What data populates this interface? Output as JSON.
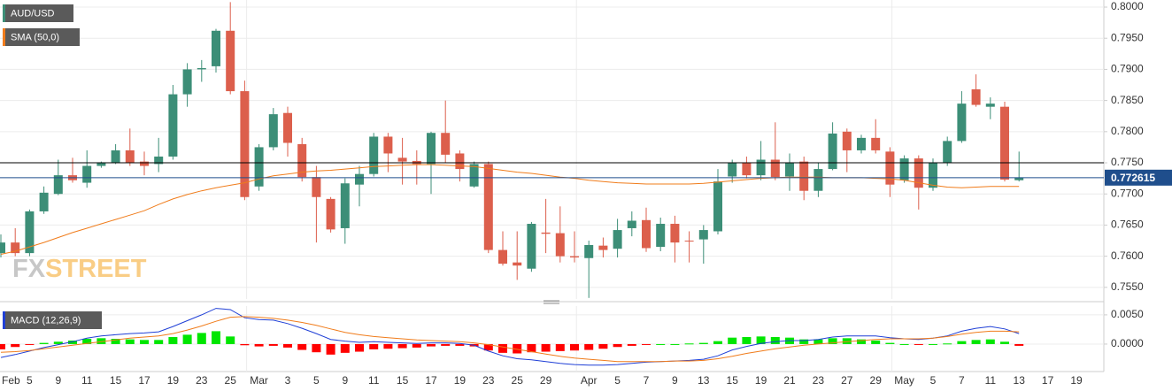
{
  "chart_data": [
    {
      "type": "candlestick",
      "name": "AUD/USD",
      "categories": [
        "Feb",
        null,
        "5",
        null,
        "9",
        null,
        "11",
        null,
        "15",
        null,
        "17",
        null,
        "19",
        null,
        "23",
        null,
        "25",
        null,
        "Mar",
        null,
        "3",
        null,
        "5",
        null,
        "9",
        null,
        "11",
        null,
        "15",
        null,
        "17",
        null,
        "19",
        null,
        "23",
        null,
        "25",
        null,
        "29",
        null,
        null,
        "Apr",
        null,
        "5",
        null,
        "7",
        null,
        "9",
        null,
        "13",
        null,
        "15",
        null,
        "19",
        null,
        "21",
        null,
        "23",
        null,
        "27",
        null,
        "29",
        null,
        "May",
        null,
        "5",
        null,
        "7",
        null,
        "11",
        null,
        "13",
        null,
        "17",
        null,
        "19"
      ],
      "open": [
        0.7605,
        0.7622,
        0.7605,
        0.7672,
        0.77,
        0.773,
        0.7718,
        0.7745,
        0.775,
        0.777,
        0.7752,
        0.7748,
        0.776,
        0.786,
        0.79,
        0.7905,
        0.7962,
        0.7865,
        0.7712,
        0.7775,
        0.783,
        0.778,
        0.7727,
        0.7692,
        0.7645,
        0.7715,
        0.7732,
        0.7792,
        0.7758,
        0.7753,
        0.7748,
        0.7798,
        0.7765,
        0.7712,
        0.7748,
        0.761,
        0.759,
        0.758,
        0.7638,
        0.7637,
        0.76,
        0.7597,
        0.7617,
        0.7612,
        0.7645,
        0.7658,
        0.7615,
        0.7652,
        0.7625,
        0.7627,
        0.764,
        0.7728,
        0.775,
        0.773,
        0.7755,
        0.7728,
        0.7752,
        0.7705,
        0.774,
        0.78,
        0.777,
        0.779,
        0.7768,
        0.7722,
        0.7757,
        0.771,
        0.775,
        0.7785,
        0.7868,
        0.784,
        0.784,
        0.7722,
        null,
        null,
        null,
        null
      ],
      "high": [
        0.7635,
        0.7645,
        0.7675,
        0.7712,
        0.7755,
        0.7758,
        0.777,
        0.7752,
        0.778,
        0.7805,
        0.7768,
        0.779,
        0.7875,
        0.791,
        0.7915,
        0.7965,
        0.8008,
        0.7882,
        0.778,
        0.7838,
        0.784,
        0.779,
        0.7745,
        0.7695,
        0.7725,
        0.7745,
        0.7798,
        0.7798,
        0.779,
        0.777,
        0.78,
        0.785,
        0.777,
        0.7752,
        0.7752,
        0.764,
        0.764,
        0.7655,
        0.7692,
        0.768,
        0.764,
        0.7625,
        0.763,
        0.766,
        0.7672,
        0.7678,
        0.7662,
        0.7665,
        0.764,
        0.765,
        0.774,
        0.7755,
        0.776,
        0.7785,
        0.7815,
        0.7765,
        0.776,
        0.775,
        0.7815,
        0.7805,
        0.7795,
        0.782,
        0.7775,
        0.7762,
        0.7762,
        0.7757,
        0.7792,
        0.7865,
        0.7892,
        0.7855,
        0.7848,
        0.7768,
        null,
        null,
        null,
        null
      ],
      "low": [
        0.7598,
        0.76,
        0.76,
        0.7668,
        0.7698,
        0.7718,
        0.771,
        0.7742,
        0.7748,
        0.7745,
        0.773,
        0.7735,
        0.7755,
        0.784,
        0.788,
        0.7895,
        0.786,
        0.769,
        0.7705,
        0.777,
        0.776,
        0.772,
        0.7622,
        0.7638,
        0.762,
        0.768,
        0.7728,
        0.7735,
        0.7715,
        0.7715,
        0.77,
        0.775,
        0.772,
        0.771,
        0.7605,
        0.7585,
        0.7562,
        0.7575,
        0.7605,
        0.759,
        0.759,
        0.7533,
        0.7598,
        0.7598,
        0.7632,
        0.7607,
        0.7608,
        0.759,
        0.759,
        0.7588,
        0.7635,
        0.7718,
        0.7725,
        0.7722,
        0.7722,
        0.7705,
        0.769,
        0.7695,
        0.7738,
        0.7735,
        0.7765,
        0.7765,
        0.7695,
        0.7718,
        0.7675,
        0.7705,
        0.7745,
        0.7782,
        0.784,
        0.782,
        0.772,
        0.772,
        null,
        null,
        null,
        null
      ],
      "close": [
        0.7622,
        0.7605,
        0.7672,
        0.7702,
        0.773,
        0.7722,
        0.7745,
        0.775,
        0.777,
        0.775,
        0.7745,
        0.776,
        0.786,
        0.79,
        0.7902,
        0.7962,
        0.7865,
        0.7695,
        0.7775,
        0.7828,
        0.7782,
        0.7727,
        0.7695,
        0.7643,
        0.7717,
        0.7732,
        0.7792,
        0.7765,
        0.7752,
        0.7748,
        0.7798,
        0.7763,
        0.774,
        0.7748,
        0.761,
        0.7588,
        0.7585,
        0.7652,
        0.7636,
        0.76,
        0.7598,
        0.7618,
        0.761,
        0.7642,
        0.7657,
        0.7613,
        0.7652,
        0.7622,
        0.7624,
        0.7642,
        0.772,
        0.775,
        0.773,
        0.7755,
        0.7727,
        0.775,
        0.7705,
        0.774,
        0.7797,
        0.777,
        0.779,
        0.777,
        0.7715,
        0.7757,
        0.771,
        0.775,
        0.7785,
        0.7845,
        0.7843,
        0.7845,
        0.7723,
        0.7726,
        null,
        null,
        null,
        null
      ],
      "up_color": "#3c8e77",
      "down_color": "#dc5f4c",
      "series": [
        {
          "name": "SMA (50,0)",
          "color": "#f07c1b",
          "values": [
            0.7603,
            0.7608,
            0.7615,
            0.7622,
            0.763,
            0.7638,
            0.7645,
            0.7652,
            0.7659,
            0.7666,
            0.7673,
            0.7683,
            0.7692,
            0.7699,
            0.7705,
            0.771,
            0.7714,
            0.7718,
            0.7724,
            0.7729,
            0.7732,
            0.7735,
            0.7737,
            0.7738,
            0.774,
            0.7742,
            0.7744,
            0.7745,
            0.7746,
            0.7747,
            0.7747,
            0.7746,
            0.7745,
            0.7744,
            0.7741,
            0.7738,
            0.7735,
            0.7733,
            0.773,
            0.7727,
            0.7725,
            0.7722,
            0.772,
            0.7718,
            0.7717,
            0.7716,
            0.7716,
            0.7716,
            0.7716,
            0.7717,
            0.7719,
            0.7721,
            0.7723,
            0.7725,
            0.7726,
            0.7727,
            0.7727,
            0.7727,
            0.7726,
            0.7726,
            0.7726,
            0.7725,
            0.7724,
            0.7722,
            0.7718,
            0.7714,
            0.7711,
            0.771,
            0.7711,
            0.7712,
            0.7712,
            0.7712,
            null,
            null,
            null,
            null
          ]
        }
      ],
      "ylim": [
        0.75313,
        0.80114
      ],
      "yticks": [
        {
          "value": 0.755,
          "label": "0.7550"
        },
        {
          "value": 0.76,
          "label": "0.7600"
        },
        {
          "value": 0.765,
          "label": "0.7650"
        },
        {
          "value": 0.77,
          "label": "0.7700"
        },
        {
          "value": 0.775,
          "label": "0.7750"
        },
        {
          "value": 0.78,
          "label": "0.7800"
        },
        {
          "value": 0.785,
          "label": "0.7850"
        },
        {
          "value": 0.79,
          "label": "0.7900"
        },
        {
          "value": 0.795,
          "label": "0.7950"
        },
        {
          "value": 0.8,
          "label": "0.8000"
        }
      ],
      "grid": true,
      "hline": 0.775,
      "last": 0.772615,
      "last_color": "#1f4e8c",
      "watermark": [
        "FX",
        "STREET"
      ]
    },
    {
      "type": "macd",
      "title": "MACD (12,26,9)",
      "series": [
        {
          "color": "#1f3fd6",
          "values": [
            -0.0023,
            -0.0018,
            -0.0012,
            -0.0006,
            -0.0001,
            0.0004,
            0.001,
            0.0014,
            0.0016,
            0.0018,
            0.0019,
            0.0021,
            0.003,
            0.004,
            0.005,
            0.0061,
            0.0059,
            0.0045,
            0.0042,
            0.0041,
            0.0035,
            0.0027,
            0.0018,
            0.0008,
            0.0005,
            0.0003,
            0.0004,
            0.0003,
            0.0002,
            0.0001,
            0.0002,
            0.0002,
            0.0001,
            -0.0002,
            -0.0012,
            -0.002,
            -0.0025,
            -0.0027,
            -0.003,
            -0.0033,
            -0.0035,
            -0.0036,
            -0.0036,
            -0.0035,
            -0.0033,
            -0.0031,
            -0.003,
            -0.0029,
            -0.0028,
            -0.0026,
            -0.002,
            -0.001,
            -0.0004,
            0.0001,
            0.0004,
            0.0006,
            0.0006,
            0.0008,
            0.0012,
            0.0014,
            0.0014,
            0.0014,
            0.0011,
            0.0009,
            0.0008,
            0.001,
            0.0014,
            0.0022,
            0.0027,
            0.003,
            0.0026,
            0.0018,
            null,
            null,
            null,
            null
          ]
        },
        {
          "color": "#f07c1b",
          "values": [
            -0.0014,
            -0.0013,
            -0.0011,
            -0.0008,
            -0.0005,
            -0.0002,
            0.0001,
            0.0004,
            0.0007,
            0.001,
            0.0012,
            0.0014,
            0.0018,
            0.0024,
            0.0031,
            0.0039,
            0.0046,
            0.0047,
            0.0046,
            0.0044,
            0.0041,
            0.0037,
            0.0032,
            0.0026,
            0.002,
            0.0016,
            0.0013,
            0.0011,
            0.0009,
            0.0007,
            0.0006,
            0.0005,
            0.0004,
            0.0002,
            -0.0001,
            -0.0005,
            -0.0009,
            -0.0013,
            -0.0017,
            -0.0021,
            -0.0024,
            -0.0026,
            -0.0028,
            -0.003,
            -0.003,
            -0.003,
            -0.003,
            -0.0029,
            -0.0029,
            -0.0028,
            -0.0025,
            -0.0021,
            -0.0016,
            -0.0012,
            -0.0008,
            -0.0005,
            -0.0002,
            0,
            0.0002,
            0.0004,
            0.0006,
            0.0008,
            0.0009,
            0.0009,
            0.0009,
            0.001,
            0.0013,
            0.0017,
            0.002,
            0.0022,
            0.0022,
            0.0021,
            null,
            null,
            null,
            null
          ]
        }
      ],
      "histogram": {
        "up_color": "#00e600",
        "down_color": "#ff0000",
        "values": [
          -0.0009,
          -0.0005,
          -0.0001,
          0.0002,
          0.0004,
          0.0006,
          0.0009,
          0.001,
          0.0009,
          0.0008,
          0.0007,
          0.0007,
          0.0012,
          0.0016,
          0.0019,
          0.0022,
          0.0013,
          -0.0002,
          -0.0004,
          -0.0003,
          -0.0006,
          -0.001,
          -0.0014,
          -0.0018,
          -0.0015,
          -0.0013,
          -0.0009,
          -0.0008,
          -0.0007,
          -0.0006,
          -0.0004,
          -0.0003,
          -0.0003,
          -0.0004,
          -0.0011,
          -0.0015,
          -0.0016,
          -0.0014,
          -0.0013,
          -0.0012,
          -0.0011,
          -0.001,
          -0.0008,
          -0.0005,
          -0.0003,
          -0.0001,
          0,
          0,
          0.0001,
          0.0002,
          0.0005,
          0.0011,
          0.0012,
          0.0013,
          0.0012,
          0.0011,
          0.0008,
          0.0008,
          0.001,
          0.001,
          0.0008,
          0.0006,
          0.0002,
          0,
          -0.0001,
          0,
          0.0001,
          0.0005,
          0.0007,
          0.0008,
          0.0004,
          -0.0003,
          null,
          null,
          null,
          null
        ]
      },
      "ylim": [
        -0.0047,
        0.0065
      ],
      "yticks": [
        {
          "value": 0,
          "label": "0.0000"
        },
        {
          "value": 0.005,
          "label": "0.0050"
        }
      ]
    }
  ]
}
